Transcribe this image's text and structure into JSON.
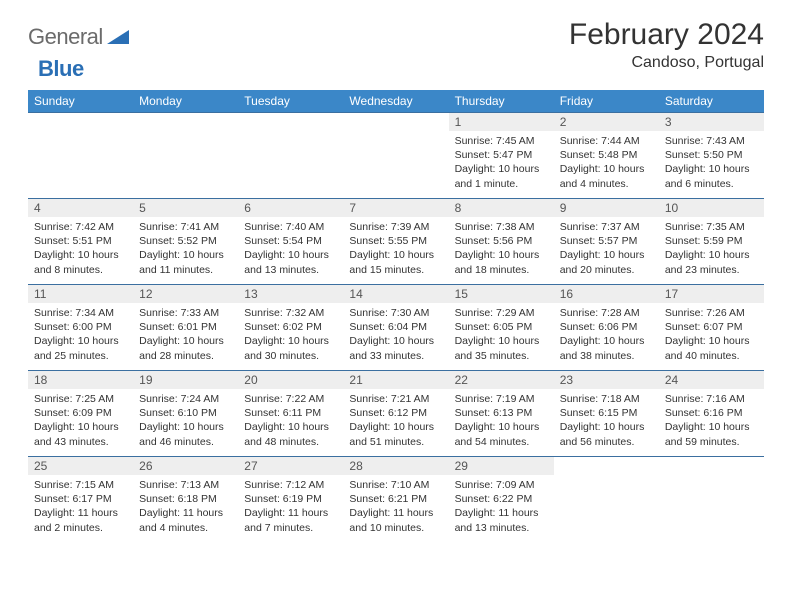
{
  "logo": {
    "text_gray": "General",
    "text_blue": "Blue"
  },
  "title": "February 2024",
  "location": "Candoso, Portugal",
  "colors": {
    "header_bg": "#3b87c8",
    "header_text": "#ffffff",
    "daynum_bg": "#eeeeee",
    "week_border": "#3b6fa0",
    "logo_gray": "#6b6b6b",
    "logo_blue": "#2a6fb5"
  },
  "weekdays": [
    "Sunday",
    "Monday",
    "Tuesday",
    "Wednesday",
    "Thursday",
    "Friday",
    "Saturday"
  ],
  "weeks": [
    [
      {
        "day": "",
        "lines": []
      },
      {
        "day": "",
        "lines": []
      },
      {
        "day": "",
        "lines": []
      },
      {
        "day": "",
        "lines": []
      },
      {
        "day": "1",
        "lines": [
          "Sunrise: 7:45 AM",
          "Sunset: 5:47 PM",
          "Daylight: 10 hours and 1 minute."
        ]
      },
      {
        "day": "2",
        "lines": [
          "Sunrise: 7:44 AM",
          "Sunset: 5:48 PM",
          "Daylight: 10 hours and 4 minutes."
        ]
      },
      {
        "day": "3",
        "lines": [
          "Sunrise: 7:43 AM",
          "Sunset: 5:50 PM",
          "Daylight: 10 hours and 6 minutes."
        ]
      }
    ],
    [
      {
        "day": "4",
        "lines": [
          "Sunrise: 7:42 AM",
          "Sunset: 5:51 PM",
          "Daylight: 10 hours and 8 minutes."
        ]
      },
      {
        "day": "5",
        "lines": [
          "Sunrise: 7:41 AM",
          "Sunset: 5:52 PM",
          "Daylight: 10 hours and 11 minutes."
        ]
      },
      {
        "day": "6",
        "lines": [
          "Sunrise: 7:40 AM",
          "Sunset: 5:54 PM",
          "Daylight: 10 hours and 13 minutes."
        ]
      },
      {
        "day": "7",
        "lines": [
          "Sunrise: 7:39 AM",
          "Sunset: 5:55 PM",
          "Daylight: 10 hours and 15 minutes."
        ]
      },
      {
        "day": "8",
        "lines": [
          "Sunrise: 7:38 AM",
          "Sunset: 5:56 PM",
          "Daylight: 10 hours and 18 minutes."
        ]
      },
      {
        "day": "9",
        "lines": [
          "Sunrise: 7:37 AM",
          "Sunset: 5:57 PM",
          "Daylight: 10 hours and 20 minutes."
        ]
      },
      {
        "day": "10",
        "lines": [
          "Sunrise: 7:35 AM",
          "Sunset: 5:59 PM",
          "Daylight: 10 hours and 23 minutes."
        ]
      }
    ],
    [
      {
        "day": "11",
        "lines": [
          "Sunrise: 7:34 AM",
          "Sunset: 6:00 PM",
          "Daylight: 10 hours and 25 minutes."
        ]
      },
      {
        "day": "12",
        "lines": [
          "Sunrise: 7:33 AM",
          "Sunset: 6:01 PM",
          "Daylight: 10 hours and 28 minutes."
        ]
      },
      {
        "day": "13",
        "lines": [
          "Sunrise: 7:32 AM",
          "Sunset: 6:02 PM",
          "Daylight: 10 hours and 30 minutes."
        ]
      },
      {
        "day": "14",
        "lines": [
          "Sunrise: 7:30 AM",
          "Sunset: 6:04 PM",
          "Daylight: 10 hours and 33 minutes."
        ]
      },
      {
        "day": "15",
        "lines": [
          "Sunrise: 7:29 AM",
          "Sunset: 6:05 PM",
          "Daylight: 10 hours and 35 minutes."
        ]
      },
      {
        "day": "16",
        "lines": [
          "Sunrise: 7:28 AM",
          "Sunset: 6:06 PM",
          "Daylight: 10 hours and 38 minutes."
        ]
      },
      {
        "day": "17",
        "lines": [
          "Sunrise: 7:26 AM",
          "Sunset: 6:07 PM",
          "Daylight: 10 hours and 40 minutes."
        ]
      }
    ],
    [
      {
        "day": "18",
        "lines": [
          "Sunrise: 7:25 AM",
          "Sunset: 6:09 PM",
          "Daylight: 10 hours and 43 minutes."
        ]
      },
      {
        "day": "19",
        "lines": [
          "Sunrise: 7:24 AM",
          "Sunset: 6:10 PM",
          "Daylight: 10 hours and 46 minutes."
        ]
      },
      {
        "day": "20",
        "lines": [
          "Sunrise: 7:22 AM",
          "Sunset: 6:11 PM",
          "Daylight: 10 hours and 48 minutes."
        ]
      },
      {
        "day": "21",
        "lines": [
          "Sunrise: 7:21 AM",
          "Sunset: 6:12 PM",
          "Daylight: 10 hours and 51 minutes."
        ]
      },
      {
        "day": "22",
        "lines": [
          "Sunrise: 7:19 AM",
          "Sunset: 6:13 PM",
          "Daylight: 10 hours and 54 minutes."
        ]
      },
      {
        "day": "23",
        "lines": [
          "Sunrise: 7:18 AM",
          "Sunset: 6:15 PM",
          "Daylight: 10 hours and 56 minutes."
        ]
      },
      {
        "day": "24",
        "lines": [
          "Sunrise: 7:16 AM",
          "Sunset: 6:16 PM",
          "Daylight: 10 hours and 59 minutes."
        ]
      }
    ],
    [
      {
        "day": "25",
        "lines": [
          "Sunrise: 7:15 AM",
          "Sunset: 6:17 PM",
          "Daylight: 11 hours and 2 minutes."
        ]
      },
      {
        "day": "26",
        "lines": [
          "Sunrise: 7:13 AM",
          "Sunset: 6:18 PM",
          "Daylight: 11 hours and 4 minutes."
        ]
      },
      {
        "day": "27",
        "lines": [
          "Sunrise: 7:12 AM",
          "Sunset: 6:19 PM",
          "Daylight: 11 hours and 7 minutes."
        ]
      },
      {
        "day": "28",
        "lines": [
          "Sunrise: 7:10 AM",
          "Sunset: 6:21 PM",
          "Daylight: 11 hours and 10 minutes."
        ]
      },
      {
        "day": "29",
        "lines": [
          "Sunrise: 7:09 AM",
          "Sunset: 6:22 PM",
          "Daylight: 11 hours and 13 minutes."
        ]
      },
      {
        "day": "",
        "lines": []
      },
      {
        "day": "",
        "lines": []
      }
    ]
  ]
}
